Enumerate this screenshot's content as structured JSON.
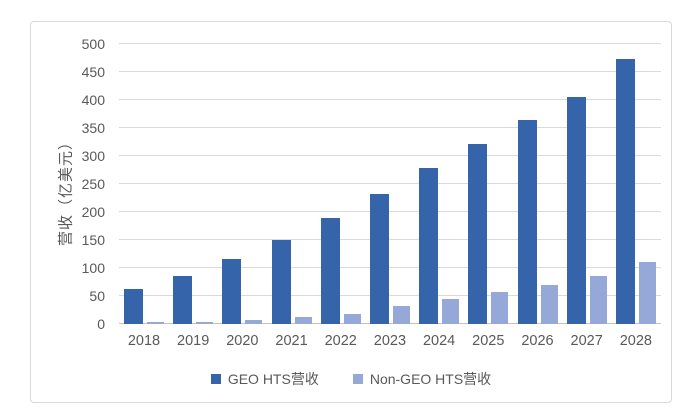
{
  "chart_data": {
    "type": "bar",
    "title": "",
    "xlabel": "",
    "ylabel": "营收（亿美元）",
    "categories": [
      "2018",
      "2019",
      "2020",
      "2021",
      "2022",
      "2023",
      "2024",
      "2025",
      "2026",
      "2027",
      "2028"
    ],
    "series": [
      {
        "name": "GEO HTS营收",
        "color": "#3564ab",
        "values": [
          62,
          86,
          116,
          150,
          190,
          232,
          278,
          322,
          365,
          406,
          474
        ]
      },
      {
        "name": "Non-GEO HTS营收",
        "color": "#96a8d8",
        "values": [
          3,
          4,
          7,
          12,
          18,
          33,
          45,
          57,
          70,
          86,
          110
        ]
      }
    ],
    "ylim": [
      0,
      500
    ],
    "ytick_step": 50,
    "yticks": [
      0,
      50,
      100,
      150,
      200,
      250,
      300,
      350,
      400,
      450,
      500
    ],
    "grid": true,
    "legend_position": "bottom",
    "gridline_color": "#dadada",
    "axis_text_color": "#595959"
  }
}
